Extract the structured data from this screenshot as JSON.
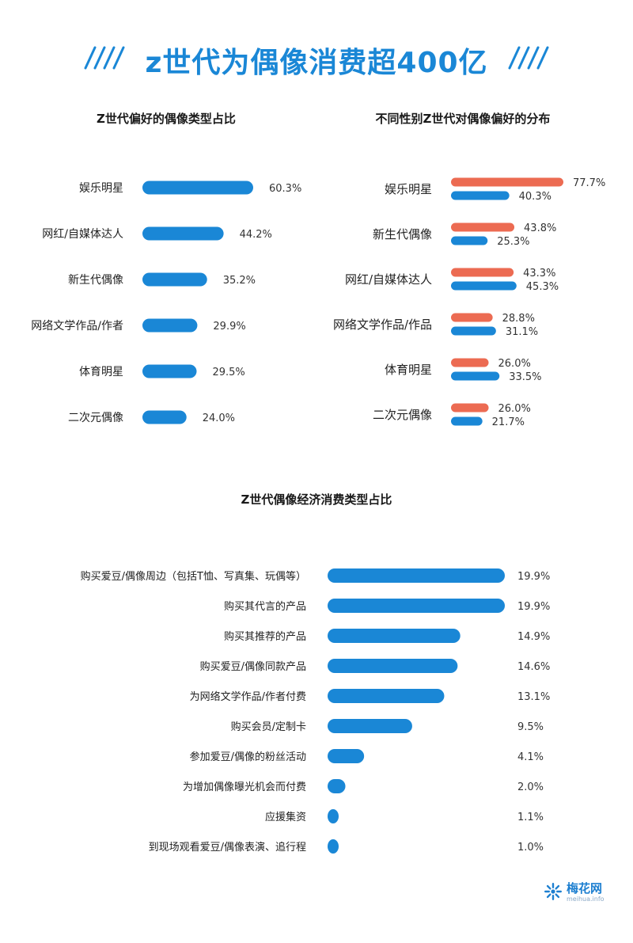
{
  "page": {
    "title": "z世代为偶像消费超400亿"
  },
  "colors": {
    "blue": "#1a87d6",
    "red": "#ec6b52"
  },
  "brand": {
    "name": "梅花网",
    "url": "meihua.info"
  },
  "chart_data": [
    {
      "type": "bar",
      "orientation": "horizontal",
      "title": "Z世代偏好的偶像类型占比",
      "categories": [
        "娱乐明星",
        "网红/自媒体达人",
        "新生代偶像",
        "网络文学作品/作者",
        "体育明星",
        "二次元偶像"
      ],
      "values": [
        60.3,
        44.2,
        35.2,
        29.9,
        29.5,
        24.0
      ],
      "value_labels": [
        "60.3%",
        "44.2%",
        "35.2%",
        "29.9%",
        "29.5%",
        "24.0%"
      ],
      "color": "#1a87d6"
    },
    {
      "type": "bar",
      "orientation": "horizontal",
      "title": "不同性别Z世代对偶像偏好的分布",
      "categories": [
        "娱乐明星",
        "新生代偶像",
        "网红/自媒体达人",
        "网络文学作品/作品",
        "体育明星",
        "二次元偶像"
      ],
      "series": [
        {
          "values": [
            77.7,
            43.8,
            43.3,
            28.8,
            26.0,
            26.0
          ],
          "value_labels": [
            "77.7%",
            "43.8%",
            "43.3%",
            "28.8%",
            "26.0%",
            "26.0%"
          ],
          "color": "#ec6b52"
        },
        {
          "values": [
            40.3,
            25.3,
            45.3,
            31.1,
            33.5,
            21.7
          ],
          "value_labels": [
            "40.3%",
            "25.3%",
            "45.3%",
            "31.1%",
            "33.5%",
            "21.7%"
          ],
          "color": "#1a87d6"
        }
      ]
    },
    {
      "type": "bar",
      "orientation": "horizontal",
      "title": "Z世代偶像经济消费类型占比",
      "categories": [
        "购买爱豆/偶像周边（包括T恤、写真集、玩偶等）",
        "购买其代言的产品",
        "购买其推荐的产品",
        "购买爱豆/偶像同款产品",
        "为网络文学作品/作者付费",
        "购买会员/定制卡",
        "参加爱豆/偶像的粉丝活动",
        "为增加偶像曝光机会而付费",
        "应援集资",
        "到现场观看爱豆/偶像表演、追行程"
      ],
      "values": [
        19.9,
        19.9,
        14.9,
        14.6,
        13.1,
        9.5,
        4.1,
        2.0,
        1.1,
        1.0
      ],
      "value_labels": [
        "19.9%",
        "19.9%",
        "14.9%",
        "14.6%",
        "13.1%",
        "9.5%",
        "4.1%",
        "2.0%",
        "1.1%",
        "1.0%"
      ],
      "color": "#1a87d6"
    }
  ]
}
